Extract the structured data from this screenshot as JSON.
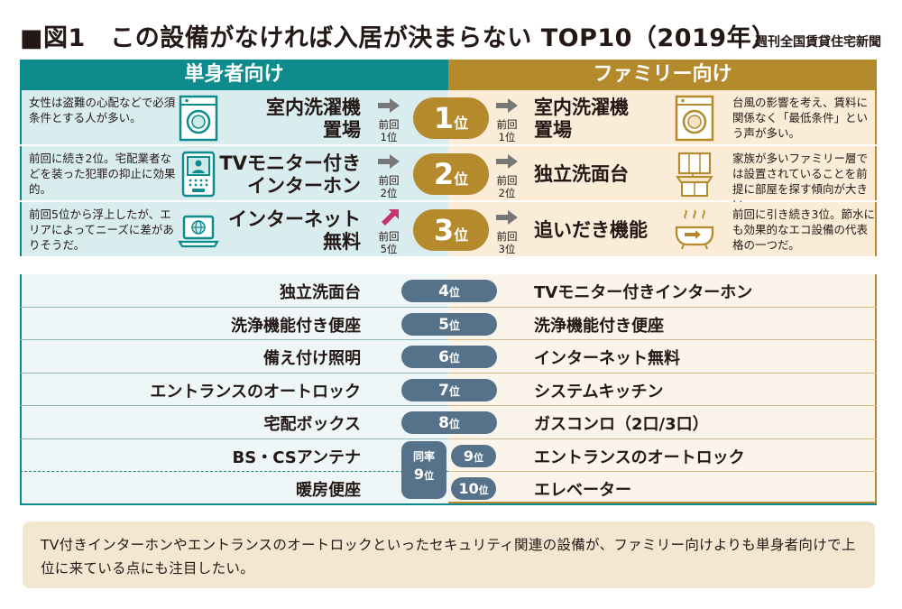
{
  "header": {
    "title": "■図1　この設備がなければ入居が決まらない TOP10（2019年）",
    "source": "週刊全国賃貸住宅新聞"
  },
  "columns": {
    "single": "単身者向け",
    "family": "ファミリー向け"
  },
  "top3": [
    {
      "rank_num": "1",
      "rank_unit": "位",
      "single": {
        "lines": [
          "室内洗濯機",
          "置場"
        ],
        "comment": "女性は盗難の心配などで必須条件とする人が多い。",
        "prev": [
          "前回",
          "1位"
        ],
        "trend": "same",
        "icon": "washing-machine-icon"
      },
      "family": {
        "lines": [
          "室内洗濯機",
          "置場"
        ],
        "comment": "台風の影響を考え、賃料に関係なく「最低条件」という声が多い。",
        "prev": [
          "前回",
          "1位"
        ],
        "trend": "same",
        "icon": "washing-machine-icon"
      }
    },
    {
      "rank_num": "2",
      "rank_unit": "位",
      "single": {
        "lines": [
          "TVモニター付き",
          "インターホン"
        ],
        "comment": "前回に続き2位。宅配業者などを装った犯罪の抑止に効果的。",
        "prev": [
          "前回",
          "2位"
        ],
        "trend": "same",
        "icon": "intercom-icon"
      },
      "family": {
        "lines": [
          "独立洗面台"
        ],
        "comment": "家族が多いファミリー層では設置されていることを前提に部屋を探す傾向が大きい。",
        "prev": [
          "前回",
          "2位"
        ],
        "trend": "same",
        "icon": "washbasin-icon"
      }
    },
    {
      "rank_num": "3",
      "rank_unit": "位",
      "single": {
        "lines": [
          "インターネット",
          "無料"
        ],
        "comment": "前回5位から浮上したが、エリアによってニーズに差がありそうだ。",
        "prev": [
          "前回",
          "5位"
        ],
        "trend": "up",
        "icon": "laptop-icon"
      },
      "family": {
        "lines": [
          "追いだき機能"
        ],
        "comment": "前回に引き続き3位。節水にも効果的なエコ設備の代表格の一つだ。",
        "prev": [
          "前回",
          "3位"
        ],
        "trend": "same",
        "icon": "bathtub-icon"
      }
    }
  ],
  "rest": [
    {
      "rank_num": "4",
      "rank_unit": "位",
      "single": "独立洗面台",
      "family": "TVモニター付きインターホン"
    },
    {
      "rank_num": "5",
      "rank_unit": "位",
      "single": "洗浄機能付き便座",
      "family": "洗浄機能付き便座"
    },
    {
      "rank_num": "6",
      "rank_unit": "位",
      "single": "備え付け照明",
      "family": "インターネット無料"
    },
    {
      "rank_num": "7",
      "rank_unit": "位",
      "single": "エントランスのオートロック",
      "family": "システムキッチン"
    },
    {
      "rank_num": "8",
      "rank_unit": "位",
      "single": "宅配ボックス",
      "family": "ガスコンロ（2口/3口）"
    }
  ],
  "tied": {
    "label_top": "同率",
    "rank_num": "9",
    "rank_unit": "位",
    "single": [
      "BS・CSアンテナ",
      "暖房便座"
    ],
    "family": [
      {
        "rank_num": "9",
        "rank_unit": "位",
        "item": "エントランスのオートロック"
      },
      {
        "rank_num": "10",
        "rank_unit": "位",
        "item": "エレベーター"
      }
    ]
  },
  "note": "TV付きインターホンやエントランスのオートロックといったセキュリティ関連の設備が、ファミリー向けよりも単身者向けで上位に来ている点にも注目したい。",
  "colors": {
    "single": "#0e8c8d",
    "family": "#b48a2d",
    "rank_pill": "#56728a",
    "up_arrow": "#c8326e",
    "same_arrow": "#777777"
  }
}
